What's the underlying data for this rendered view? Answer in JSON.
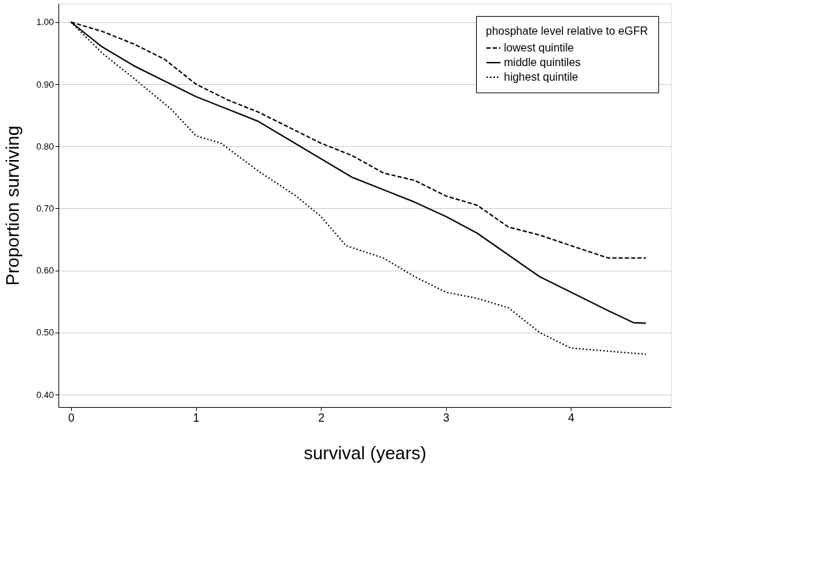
{
  "chart_data": {
    "type": "line",
    "xlabel": "survival (years)",
    "ylabel": "Proportion surviving",
    "legend_title": "phosphate level relative to eGFR",
    "legend": "top right",
    "grid": "y",
    "marker": "none",
    "xlim": [
      -0.1,
      4.8
    ],
    "xticks": [
      0,
      1,
      2,
      3,
      4
    ],
    "ylim": [
      0.38,
      1.03
    ],
    "yticks": [
      {
        "value": 0.4,
        "label": "0.40"
      },
      {
        "value": 0.5,
        "label": "0.50"
      },
      {
        "value": 0.6,
        "label": "0.60"
      },
      {
        "value": 0.7,
        "label": "0.70"
      },
      {
        "value": 0.8,
        "label": "0.80"
      },
      {
        "value": 0.9,
        "label": "0.90"
      },
      {
        "value": 1.0,
        "label": "1.00"
      }
    ],
    "series": [
      {
        "name": "lowest quintile",
        "color": "#000000",
        "line_style": "dashed",
        "x": [
          0,
          0.25,
          0.5,
          0.75,
          1.0,
          1.25,
          1.5,
          1.75,
          2.0,
          2.25,
          2.5,
          2.75,
          3.0,
          3.25,
          3.5,
          3.75,
          4.0,
          4.3,
          4.6
        ],
        "values": [
          1.0,
          0.985,
          0.965,
          0.94,
          0.9,
          0.875,
          0.855,
          0.83,
          0.805,
          0.785,
          0.757,
          0.745,
          0.72,
          0.705,
          0.67,
          0.657,
          0.64,
          0.62,
          0.62
        ]
      },
      {
        "name": "middle quintiles",
        "color": "#000000",
        "line_style": "solid",
        "x": [
          0,
          0.25,
          0.5,
          0.75,
          1.0,
          1.25,
          1.5,
          1.75,
          2.0,
          2.25,
          2.5,
          2.75,
          3.0,
          3.25,
          3.5,
          3.75,
          4.0,
          4.3,
          4.5,
          4.6
        ],
        "values": [
          1.0,
          0.96,
          0.93,
          0.905,
          0.88,
          0.86,
          0.84,
          0.81,
          0.78,
          0.75,
          0.73,
          0.71,
          0.687,
          0.66,
          0.625,
          0.59,
          0.565,
          0.535,
          0.516,
          0.515
        ]
      },
      {
        "name": "highest quintile",
        "color": "#000000",
        "line_style": "dotted",
        "x": [
          0,
          0.25,
          0.5,
          0.8,
          1.0,
          1.2,
          1.5,
          1.8,
          2.0,
          2.2,
          2.5,
          2.75,
          3.0,
          3.25,
          3.5,
          3.75,
          4.0,
          4.6
        ],
        "values": [
          1.0,
          0.95,
          0.91,
          0.86,
          0.817,
          0.805,
          0.76,
          0.72,
          0.687,
          0.64,
          0.62,
          0.59,
          0.565,
          0.555,
          0.54,
          0.5,
          0.475,
          0.465
        ]
      }
    ]
  }
}
